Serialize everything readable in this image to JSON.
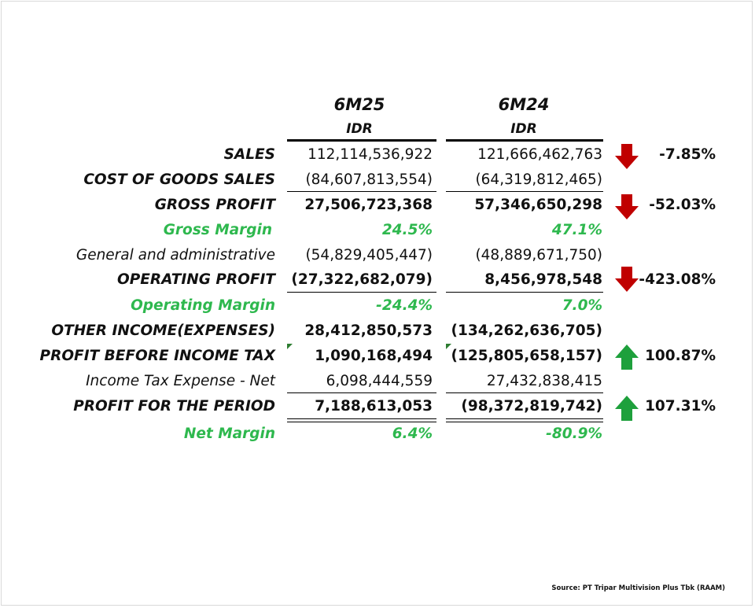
{
  "header": {
    "col1_title": "6M25",
    "col1_currency": "IDR",
    "col2_title": "6M24",
    "col2_currency": "IDR"
  },
  "colors": {
    "margin_green": "#2eb84e",
    "down_arrow_red": "#c00000",
    "up_arrow_green": "#1ea03c"
  },
  "rows": [
    {
      "label": "SALES",
      "v1": "112,114,536,922",
      "v2": "121,666,462,763",
      "change": "-7.85%",
      "trend": "down"
    },
    {
      "label": "COST OF GOODS SALES",
      "v1": "(84,607,813,554)",
      "v2": "(64,319,812,465)"
    },
    {
      "label": "GROSS PROFIT",
      "v1": "27,506,723,368",
      "v2": "57,346,650,298",
      "change": "-52.03%",
      "trend": "down"
    },
    {
      "label": "Gross Margin",
      "v1": "24.5%",
      "v2": "47.1%"
    },
    {
      "label": "General and administrative",
      "v1": "(54,829,405,447)",
      "v2": "(48,889,671,750)"
    },
    {
      "label": "OPERATING PROFIT",
      "v1": "(27,322,682,079)",
      "v2": "8,456,978,548",
      "change": "-423.08%",
      "trend": "down"
    },
    {
      "label": "Operating Margin",
      "v1": "-24.4%",
      "v2": "7.0%"
    },
    {
      "label": "OTHER INCOME(EXPENSES)",
      "v1": "28,412,850,573",
      "v2": "(134,262,636,705)"
    },
    {
      "label": "PROFIT BEFORE INCOME TAX",
      "v1": "1,090,168,494",
      "v2": "(125,805,658,157)",
      "change": "100.87%",
      "trend": "up"
    },
    {
      "label": "Income Tax Expense - Net",
      "v1": "6,098,444,559",
      "v2": "27,432,838,415"
    },
    {
      "label": "PROFIT FOR THE PERIOD",
      "v1": "7,188,613,053",
      "v2": "(98,372,819,742)",
      "change": "107.31%",
      "trend": "up"
    },
    {
      "label": "Net Margin",
      "v1": "6.4%",
      "v2": "-80.9%"
    }
  ],
  "source": "Source: PT Tripar Multivision Plus Tbk (RAAM)",
  "icons": {
    "down": "arrow-down-icon",
    "up": "arrow-up-icon"
  }
}
